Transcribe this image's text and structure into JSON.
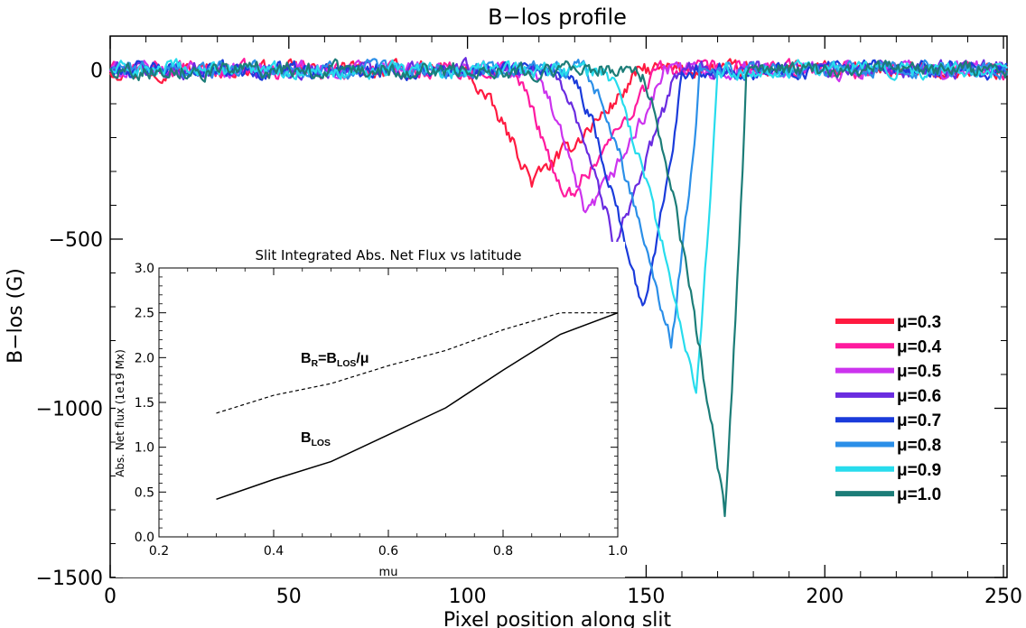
{
  "chart_data": [
    {
      "type": "line",
      "title": "B−los profile",
      "xlabel": "Pixel position along slit",
      "ylabel": "B−los (G)",
      "xlim": [
        0,
        251
      ],
      "ylim": [
        -1500,
        100
      ],
      "xticks": [
        0,
        50,
        100,
        150,
        200,
        250
      ],
      "xtick_labels": [
        "0",
        "50",
        "100",
        "150",
        "200",
        "250"
      ],
      "yticks": [
        0,
        -500,
        -1000,
        -1500
      ],
      "ytick_labels": [
        "0",
        "−500",
        "−1000",
        "−1500"
      ],
      "grid": false,
      "legend": "right",
      "series": [
        {
          "name": "μ=0.3",
          "color": "#ff1a40",
          "dip_start": 98,
          "dip_min_x": 118,
          "dip_min": -330,
          "dip_end": 148
        },
        {
          "name": "μ=0.4",
          "color": "#ff1a9e",
          "dip_start": 112,
          "dip_min_x": 127,
          "dip_min": -390,
          "dip_end": 152
        },
        {
          "name": "μ=0.5",
          "color": "#cc33ee",
          "dip_start": 118,
          "dip_min_x": 133,
          "dip_min": -440,
          "dip_end": 155
        },
        {
          "name": "μ=0.6",
          "color": "#6a2ce0",
          "dip_start": 124,
          "dip_min_x": 141,
          "dip_min": -510,
          "dip_end": 158
        },
        {
          "name": "μ=0.7",
          "color": "#1a3bdb",
          "dip_start": 128,
          "dip_min_x": 149,
          "dip_min": -720,
          "dip_end": 160
        },
        {
          "name": "μ=0.8",
          "color": "#2b8fe8",
          "dip_start": 132,
          "dip_min_x": 157,
          "dip_min": -810,
          "dip_end": 165
        },
        {
          "name": "μ=0.9",
          "color": "#27dced",
          "dip_start": 138,
          "dip_min_x": 164,
          "dip_min": -960,
          "dip_end": 170
        },
        {
          "name": "μ=1.0",
          "color": "#1c7d78",
          "dip_start": 148,
          "dip_min_x": 172,
          "dip_min": -1320,
          "dip_end": 178
        }
      ]
    },
    {
      "type": "line",
      "title": "Slit Integrated Abs. Net Flux vs latitude",
      "xlabel": "mu",
      "ylabel": "Abs. Net flux (1e19 Mx)",
      "xlim": [
        0.2,
        1.0
      ],
      "ylim": [
        0.0,
        3.0
      ],
      "xticks": [
        0.2,
        0.4,
        0.6,
        0.8,
        1.0
      ],
      "xtick_labels": [
        "0.2",
        "0.4",
        "0.6",
        "0.8",
        "1.0"
      ],
      "yticks": [
        0.0,
        0.5,
        1.0,
        1.5,
        2.0,
        2.5,
        3.0
      ],
      "ytick_labels": [
        "0.0",
        "0.5",
        "1.0",
        "1.5",
        "2.0",
        "2.5",
        "3.0"
      ],
      "grid": false,
      "annotations": [
        {
          "label": "BR=BLOS/μ",
          "parts": [
            "B",
            "R",
            "=B",
            "LOS",
            "/μ"
          ]
        },
        {
          "label": "BLOS",
          "parts": [
            "B",
            "LOS"
          ]
        }
      ],
      "series": [
        {
          "name": "B_R",
          "dash": true,
          "x": [
            0.3,
            0.4,
            0.5,
            0.6,
            0.7,
            0.8,
            0.9,
            1.0
          ],
          "y": [
            1.38,
            1.58,
            1.71,
            1.91,
            2.08,
            2.31,
            2.5,
            2.5
          ]
        },
        {
          "name": "B_LOS",
          "dash": false,
          "x": [
            0.3,
            0.4,
            0.5,
            0.6,
            0.7,
            0.8,
            0.9,
            1.0
          ],
          "y": [
            0.42,
            0.64,
            0.84,
            1.14,
            1.44,
            1.86,
            2.26,
            2.5
          ]
        }
      ]
    }
  ]
}
